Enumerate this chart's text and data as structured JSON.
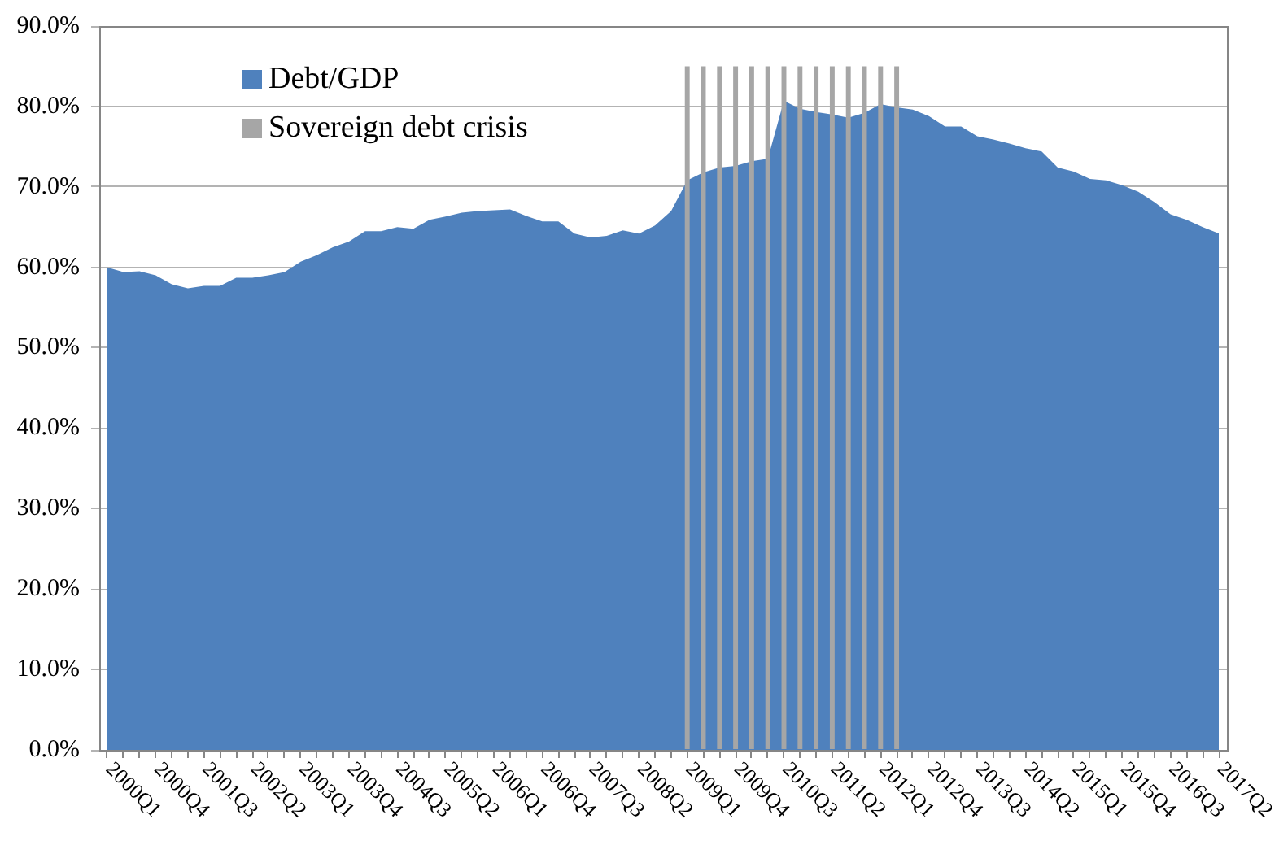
{
  "chart_data": {
    "type": "area",
    "categories": [
      "2000Q1",
      null,
      null,
      "2000Q4",
      null,
      null,
      "2001Q3",
      null,
      null,
      "2002Q2",
      null,
      null,
      "2003Q1",
      null,
      null,
      "2003Q4",
      null,
      null,
      "2004Q3",
      null,
      null,
      "2005Q2",
      null,
      null,
      "2006Q1",
      null,
      null,
      "2006Q4",
      null,
      null,
      "2007Q3",
      null,
      null,
      "2008Q2",
      null,
      null,
      "2009Q1",
      null,
      null,
      "2009Q4",
      null,
      null,
      "2010Q3",
      null,
      null,
      "2011Q2",
      null,
      null,
      "2012Q1",
      null,
      null,
      "2012Q4",
      null,
      null,
      "2013Q3",
      null,
      null,
      "2014Q2",
      null,
      null,
      "2015Q1",
      null,
      null,
      "2015Q4",
      null,
      null,
      "2016Q3",
      null,
      null,
      "2017Q2"
    ],
    "series": [
      {
        "name": "Debt/GDP",
        "color": "#4f81bd",
        "values": [
          60.0,
          59.4,
          59.5,
          59.0,
          57.9,
          57.4,
          57.7,
          57.7,
          58.7,
          58.7,
          59.0,
          59.4,
          60.7,
          61.5,
          62.5,
          63.2,
          64.5,
          64.5,
          65.0,
          64.8,
          65.9,
          66.3,
          66.8,
          67.0,
          67.1,
          67.2,
          66.4,
          65.7,
          65.7,
          64.2,
          63.7,
          63.9,
          64.6,
          64.2,
          65.2,
          67.0,
          70.8,
          71.8,
          72.4,
          72.6,
          73.2,
          73.5,
          80.7,
          79.7,
          79.3,
          79.0,
          78.6,
          79.2,
          80.3,
          79.9,
          79.6,
          78.8,
          77.5,
          77.5,
          76.3,
          75.9,
          75.4,
          74.8,
          74.4,
          72.4,
          71.9,
          71.0,
          70.8,
          70.2,
          69.4,
          68.1,
          66.6,
          65.9,
          65.0,
          64.2
        ]
      },
      {
        "name": "Sovereign debt crisis",
        "type": "bar",
        "color": "#a6a6a6",
        "values": [
          null,
          null,
          null,
          null,
          null,
          null,
          null,
          null,
          null,
          null,
          null,
          null,
          null,
          null,
          null,
          null,
          null,
          null,
          null,
          null,
          null,
          null,
          null,
          null,
          null,
          null,
          null,
          null,
          null,
          null,
          null,
          null,
          null,
          null,
          null,
          null,
          85,
          85,
          85,
          85,
          85,
          85,
          85,
          85,
          85,
          85,
          85,
          85,
          85,
          85,
          null,
          null,
          null,
          null,
          null,
          null,
          null,
          null,
          null,
          null,
          null,
          null,
          null,
          null,
          null,
          null,
          null,
          null,
          null,
          null
        ]
      }
    ],
    "ylim": [
      0,
      90
    ],
    "yticks": [
      {
        "value": 0,
        "label": "0.0%"
      },
      {
        "value": 10,
        "label": "10.0%"
      },
      {
        "value": 20,
        "label": "20.0%"
      },
      {
        "value": 30,
        "label": "30.0%"
      },
      {
        "value": 40,
        "label": "40.0%"
      },
      {
        "value": 50,
        "label": "50.0%"
      },
      {
        "value": 60,
        "label": "60.0%"
      },
      {
        "value": 70,
        "label": "70.0%"
      },
      {
        "value": 80,
        "label": "80.0%"
      },
      {
        "value": 90,
        "label": "90.0%"
      }
    ],
    "grid": "y",
    "legend": "top left"
  }
}
